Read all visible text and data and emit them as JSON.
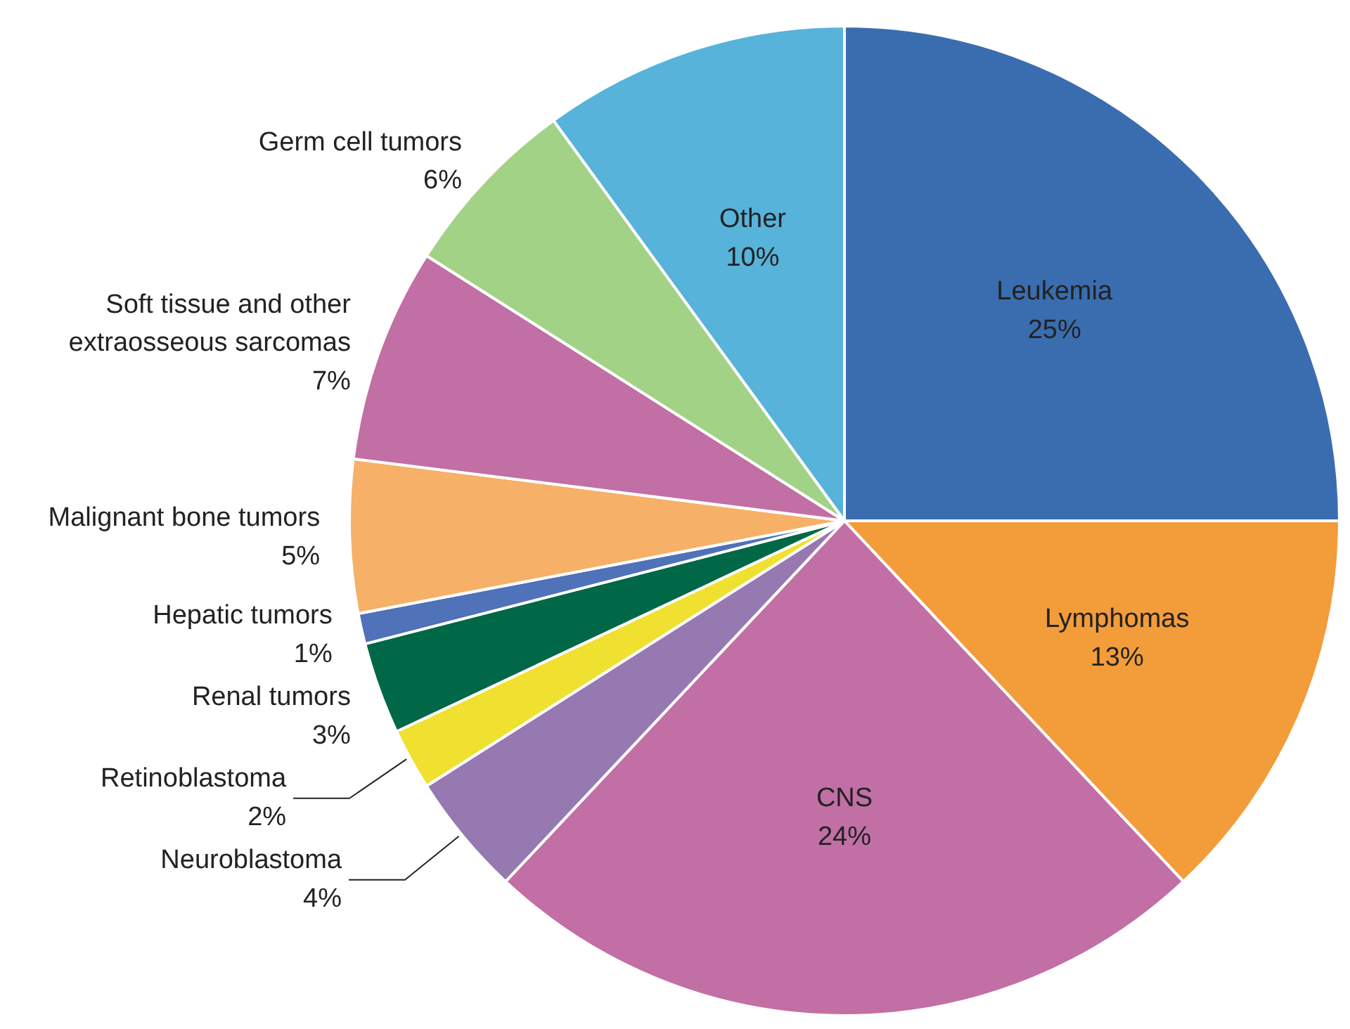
{
  "chart_data": {
    "type": "pie",
    "categories": [
      "Leukemia",
      "Lymphomas",
      "CNS",
      "Neuroblastoma",
      "Retinoblastoma",
      "Renal tumors",
      "Hepatic tumors",
      "Malignant bone tumors",
      "Soft tissue and other extraosseous sarcomas",
      "Germ cell tumors",
      "Other"
    ],
    "values": [
      25,
      13,
      24,
      4,
      2,
      3,
      1,
      5,
      7,
      6,
      10
    ],
    "value_labels": [
      "25%",
      "13%",
      "24%",
      "4%",
      "2%",
      "3%",
      "1%",
      "5%",
      "7%",
      "6%",
      "10%"
    ],
    "colors": [
      "#3a6daf",
      "#f39c3a",
      "#c16fa5",
      "#9679b1",
      "#f0e030",
      "#006847",
      "#4f72b8",
      "#f6b067",
      "#c16fa5",
      "#a2d286",
      "#57b3d9"
    ]
  }
}
